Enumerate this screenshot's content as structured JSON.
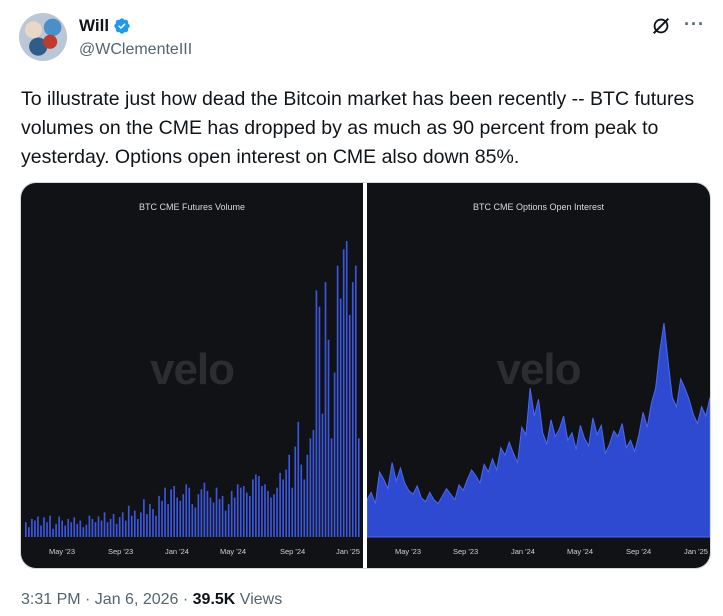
{
  "author": {
    "name": "Will",
    "handle": "@WClementeIII"
  },
  "tweet": {
    "text": "To illustrate just how dead the Bitcoin market has been recently -- BTC futures volumes on the CME has dropped by as much as 90 percent from peak to yesterday. Options open interest on CME also down 85%."
  },
  "meta": {
    "time": "3:31 PM · Jan 6, 2026 · ",
    "views_count": "39.5K",
    "views_label": " Views"
  },
  "colors": {
    "accent": "#1d9bf0",
    "chart_bg": "#111215",
    "bar": "#3b57e0",
    "area": "#2e4ad0"
  },
  "chart_data": [
    {
      "type": "bar",
      "title": "BTC CME Futures Volume",
      "watermark": "velo",
      "x_ticks": [
        "May '23",
        "Sep '23",
        "Jan '24",
        "May '24",
        "Sep '24",
        "Jan '25"
      ],
      "values": [
        18,
        12,
        22,
        20,
        25,
        14,
        24,
        18,
        26,
        10,
        16,
        25,
        20,
        14,
        22,
        18,
        24,
        16,
        20,
        12,
        15,
        26,
        22,
        18,
        25,
        20,
        30,
        18,
        22,
        28,
        16,
        24,
        30,
        20,
        38,
        26,
        32,
        22,
        30,
        46,
        28,
        40,
        34,
        26,
        50,
        44,
        60,
        40,
        58,
        62,
        48,
        44,
        52,
        64,
        60,
        40,
        36,
        52,
        58,
        66,
        56,
        48,
        42,
        60,
        46,
        50,
        32,
        40,
        56,
        48,
        64,
        60,
        62,
        54,
        50,
        70,
        76,
        74,
        62,
        64,
        56,
        48,
        52,
        60,
        78,
        70,
        82,
        100,
        60,
        110,
        140,
        88,
        70,
        100,
        120,
        130,
        300,
        280,
        150,
        310,
        240,
        120,
        200,
        330,
        290,
        350,
        360,
        270,
        310,
        330,
        120
      ]
    },
    {
      "type": "area",
      "title": "BTC CME Options Open Interest",
      "watermark": "velo",
      "x_ticks": [
        "May '23",
        "Sep '23",
        "Jan '24",
        "May '24",
        "Sep '24",
        "Jan '25"
      ],
      "values": [
        40,
        48,
        36,
        70,
        62,
        52,
        80,
        60,
        74,
        58,
        50,
        46,
        55,
        42,
        38,
        48,
        40,
        36,
        44,
        52,
        46,
        40,
        56,
        50,
        62,
        72,
        66,
        58,
        78,
        70,
        84,
        72,
        96,
        88,
        102,
        90,
        80,
        118,
        110,
        160,
        130,
        148,
        112,
        100,
        126,
        108,
        116,
        130,
        104,
        112,
        94,
        120,
        106,
        98,
        128,
        110,
        120,
        90,
        100,
        114,
        108,
        122,
        96,
        104,
        92,
        110,
        134,
        118,
        144,
        160,
        200,
        230,
        188,
        150,
        140,
        170,
        160,
        148,
        132,
        122,
        140,
        130,
        150
      ]
    }
  ]
}
